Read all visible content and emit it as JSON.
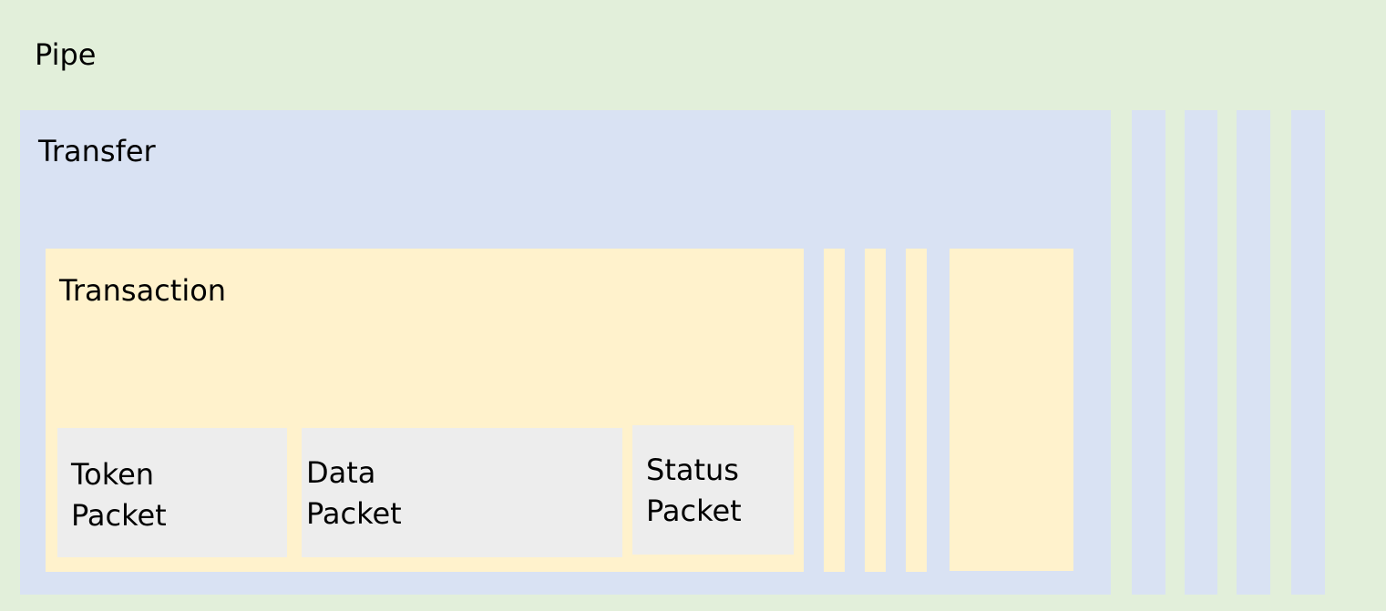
{
  "pipe": {
    "label": "Pipe"
  },
  "transfer": {
    "label": "Transfer"
  },
  "transaction": {
    "label": "Transaction"
  },
  "packets": {
    "token": {
      "line1": "Token",
      "line2": "Packet"
    },
    "data": {
      "line1": "Data",
      "line2": "Packet"
    },
    "status": {
      "line1": "Status",
      "line2": "Packet"
    }
  },
  "colors": {
    "pipe": "#e2efda",
    "transfer": "#d9e2f3",
    "transaction": "#fff2cc",
    "packet": "#ededed"
  }
}
